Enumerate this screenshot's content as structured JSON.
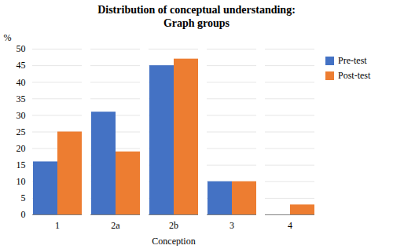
{
  "chart_data": {
    "type": "bar",
    "title": "Distribution of conceptual understanding:\nGraph groups",
    "xlabel": "Conception",
    "ylabel": "%",
    "categories": [
      "1",
      "2a",
      "2b",
      "3",
      "4"
    ],
    "series": [
      {
        "name": "Pre-test",
        "color": "#4472C4",
        "values": [
          16,
          31,
          45,
          10,
          0
        ]
      },
      {
        "name": "Post-test",
        "color": "#ED7D31",
        "values": [
          25,
          19,
          47,
          10,
          3
        ]
      }
    ],
    "ylim": [
      0,
      50
    ],
    "yticks": [
      0,
      5,
      10,
      15,
      20,
      25,
      30,
      35,
      40,
      45,
      50
    ],
    "grid": true,
    "legend": "upper right"
  }
}
